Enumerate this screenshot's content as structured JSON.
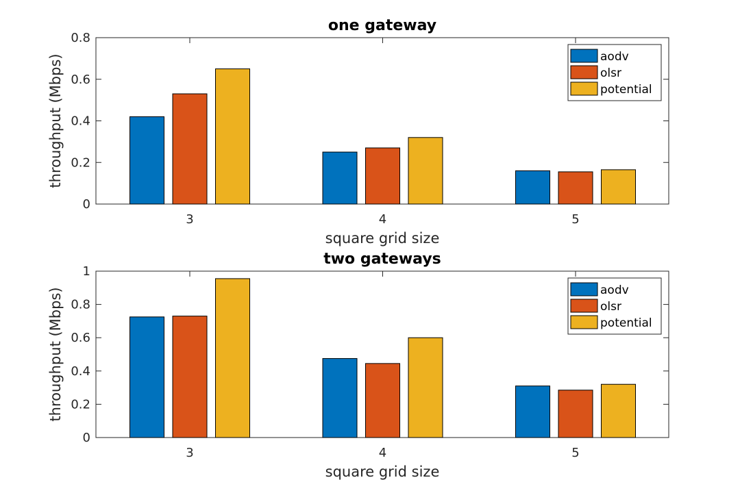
{
  "chart_data": [
    {
      "type": "bar",
      "title": "one gateway",
      "xlabel": "square grid size",
      "ylabel": "throughput (Mbps)",
      "categories": [
        "3",
        "4",
        "5"
      ],
      "ylim": [
        0,
        0.8
      ],
      "yticks": [
        "0",
        "0.2",
        "0.4",
        "0.6",
        "0.8"
      ],
      "legend_position": "top-right",
      "grid": false,
      "series": [
        {
          "name": "aodv",
          "color": "#0072BD",
          "values": [
            0.42,
            0.25,
            0.16
          ]
        },
        {
          "name": "olsr",
          "color": "#D95319",
          "values": [
            0.53,
            0.27,
            0.155
          ]
        },
        {
          "name": "potential",
          "color": "#EDB120",
          "values": [
            0.65,
            0.32,
            0.165
          ]
        }
      ]
    },
    {
      "type": "bar",
      "title": "two gateways",
      "xlabel": "square grid size",
      "ylabel": "throughput (Mbps)",
      "categories": [
        "3",
        "4",
        "5"
      ],
      "ylim": [
        0,
        1
      ],
      "yticks": [
        "0",
        "0.2",
        "0.4",
        "0.6",
        "0.8",
        "1"
      ],
      "legend_position": "top-right",
      "grid": false,
      "series": [
        {
          "name": "aodv",
          "color": "#0072BD",
          "values": [
            0.725,
            0.475,
            0.31
          ]
        },
        {
          "name": "olsr",
          "color": "#D95319",
          "values": [
            0.73,
            0.445,
            0.285
          ]
        },
        {
          "name": "potential",
          "color": "#EDB120",
          "values": [
            0.955,
            0.6,
            0.32
          ]
        }
      ]
    }
  ]
}
